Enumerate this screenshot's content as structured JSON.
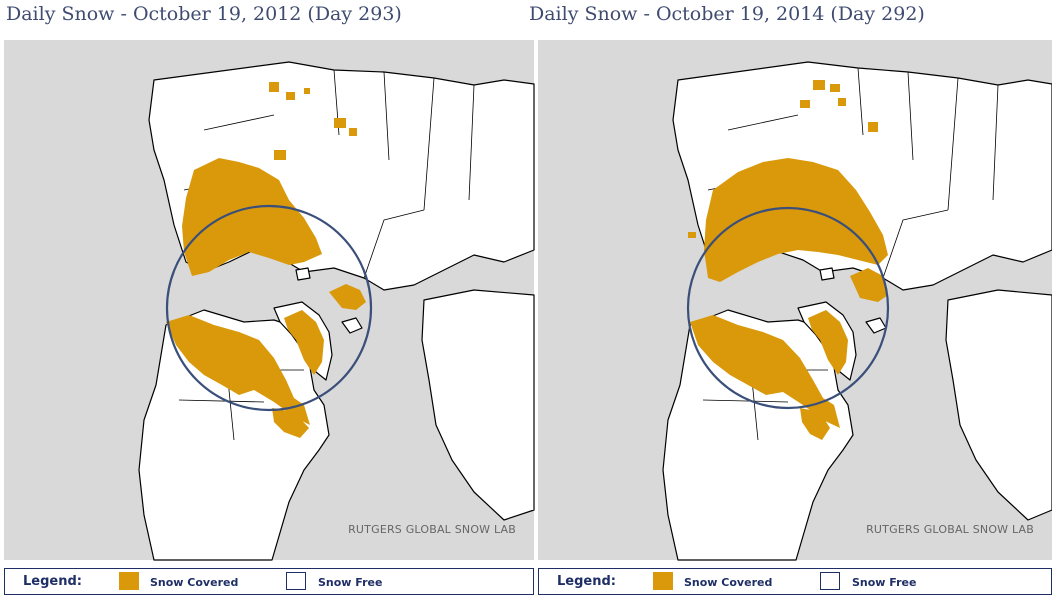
{
  "colors": {
    "snow_covered": "#d9990b",
    "snow_free": "#ffffff",
    "water": "#d9d9d9",
    "circle": "#3a4f7a",
    "title_text": "#3f4b70"
  },
  "panels": [
    {
      "title": "Daily Snow - October 19, 2012 (Day 293)",
      "credit": "RUTGERS GLOBAL SNOW LAB",
      "legend": {
        "title": "Legend:",
        "snow_covered": "Snow Covered",
        "snow_free": "Snow Free"
      }
    },
    {
      "title": "Daily Snow - October 19, 2014 (Day 292)",
      "credit": "RUTGERS GLOBAL SNOW LAB",
      "legend": {
        "title": "Legend:",
        "snow_covered": "Snow Covered",
        "snow_free": "Snow Free"
      }
    }
  ]
}
